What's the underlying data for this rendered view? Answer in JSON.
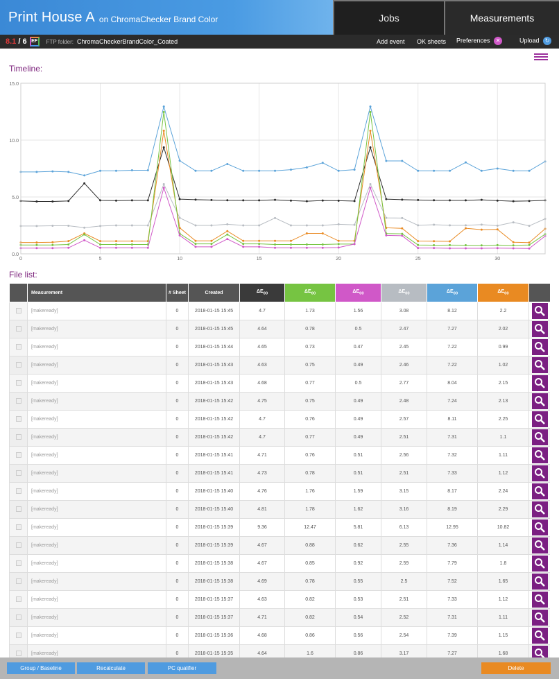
{
  "header": {
    "title": "Print House A",
    "subtitle": "on ChromaChecker Brand Color",
    "tabs": [
      {
        "label": "Jobs"
      },
      {
        "label": "Measurements"
      }
    ]
  },
  "toolbar": {
    "score_a": "8.1",
    "score_sep": " / ",
    "score_b": "6",
    "ef_badge": "EF",
    "ftp_label": "FTP folder:",
    "ftp_value": "ChromaCheckerBrandColor_Coated",
    "add_event": "Add event",
    "ok_sheets": "OK sheets",
    "preferences": "Preferences",
    "upload": "Upload"
  },
  "timeline_label": "Timeline:",
  "filelist_label": "File list:",
  "chart_data": {
    "type": "line",
    "title": "",
    "xlabel": "",
    "ylabel": "",
    "xlim": [
      0,
      33
    ],
    "ylim": [
      0,
      15
    ],
    "xticks": [
      0,
      5,
      10,
      15,
      20,
      25,
      30
    ],
    "yticks": [
      "0.0",
      "5.0",
      "10.0",
      "15.0"
    ],
    "x": [
      0,
      1,
      2,
      3,
      4,
      5,
      6,
      7,
      8,
      9,
      10,
      11,
      12,
      13,
      14,
      15,
      16,
      17,
      18,
      19,
      20,
      21,
      22,
      23,
      24,
      25,
      26,
      27,
      28,
      29,
      30,
      31,
      32,
      33
    ],
    "series": [
      {
        "color": "#5ba3d9",
        "values": [
          7.2,
          7.2,
          7.25,
          7.2,
          6.9,
          7.3,
          7.3,
          7.35,
          7.35,
          12.95,
          8.19,
          7.3,
          7.3,
          7.9,
          7.3,
          7.3,
          7.3,
          7.4,
          7.6,
          8.0,
          7.3,
          7.4,
          12.95,
          8.17,
          8.17,
          7.3,
          7.3,
          7.3,
          8.04,
          7.3,
          7.5,
          7.3,
          7.3,
          8.12
        ]
      },
      {
        "color": "#2b2b2b",
        "values": [
          4.65,
          4.6,
          4.6,
          4.65,
          6.2,
          4.7,
          4.68,
          4.7,
          4.7,
          9.36,
          4.81,
          4.76,
          4.73,
          4.71,
          4.7,
          4.7,
          4.75,
          4.68,
          4.63,
          4.69,
          4.67,
          4.64,
          9.36,
          4.81,
          4.76,
          4.73,
          4.71,
          4.7,
          4.7,
          4.75,
          4.68,
          4.63,
          4.65,
          4.7
        ]
      },
      {
        "color": "#b7bcc2",
        "values": [
          2.45,
          2.45,
          2.47,
          2.47,
          2.3,
          2.45,
          2.5,
          2.5,
          2.5,
          6.13,
          3.16,
          2.5,
          2.5,
          2.6,
          2.5,
          2.5,
          3.15,
          2.5,
          2.5,
          2.5,
          2.6,
          2.55,
          6.13,
          3.16,
          3.15,
          2.51,
          2.56,
          2.51,
          2.51,
          2.57,
          2.48,
          2.77,
          2.46,
          3.08
        ]
      },
      {
        "color": "#e98a22",
        "values": [
          1.0,
          1.0,
          1.02,
          1.12,
          1.8,
          1.12,
          1.12,
          1.12,
          1.12,
          10.82,
          2.29,
          1.14,
          1.14,
          2.0,
          1.14,
          1.14,
          1.14,
          1.14,
          1.8,
          1.8,
          1.14,
          1.14,
          10.82,
          2.29,
          2.24,
          1.12,
          1.11,
          1.1,
          2.25,
          2.13,
          2.15,
          1.02,
          0.99,
          2.2
        ]
      },
      {
        "color": "#76c442",
        "values": [
          0.78,
          0.78,
          0.78,
          0.82,
          1.7,
          0.82,
          0.82,
          0.82,
          0.82,
          12.47,
          1.78,
          0.88,
          0.88,
          1.7,
          0.88,
          0.88,
          0.82,
          0.82,
          0.82,
          0.82,
          0.86,
          0.86,
          12.47,
          1.78,
          1.76,
          0.78,
          0.76,
          0.77,
          0.76,
          0.75,
          0.77,
          0.75,
          0.78,
          1.73
        ]
      },
      {
        "color": "#d058c8",
        "values": [
          0.5,
          0.5,
          0.5,
          0.53,
          1.2,
          0.53,
          0.53,
          0.53,
          0.53,
          5.81,
          1.62,
          0.62,
          0.62,
          1.3,
          0.62,
          0.62,
          0.53,
          0.53,
          0.53,
          0.53,
          0.56,
          0.86,
          5.81,
          1.62,
          1.59,
          0.51,
          0.51,
          0.49,
          0.49,
          0.49,
          0.5,
          0.49,
          0.47,
          1.56
        ]
      }
    ]
  },
  "table": {
    "headers": {
      "measurement": "Measurement",
      "sheet": "# Sheet",
      "created": "Created",
      "de": "ΔE",
      "de_sub": "00"
    },
    "de_colors": [
      "#3a3a3a",
      "#76c442",
      "#d058c8",
      "#b7bcc2",
      "#5ba3d9",
      "#e98a22"
    ],
    "rows": [
      {
        "name": "[makeready]",
        "sheet": "0",
        "created": "2018-01-15 15:45",
        "v": [
          "4.7",
          "1.73",
          "1.56",
          "3.08",
          "8.12",
          "2.2"
        ]
      },
      {
        "name": "[makeready]",
        "sheet": "0",
        "created": "2018-01-15 15:45",
        "v": [
          "4.64",
          "0.78",
          "0.5",
          "2.47",
          "7.27",
          "2.02"
        ]
      },
      {
        "name": "[makeready]",
        "sheet": "0",
        "created": "2018-01-15 15:44",
        "v": [
          "4.65",
          "0.73",
          "0.47",
          "2.45",
          "7.22",
          "0.99"
        ]
      },
      {
        "name": "[makeready]",
        "sheet": "0",
        "created": "2018-01-15 15:43",
        "v": [
          "4.63",
          "0.75",
          "0.49",
          "2.46",
          "7.22",
          "1.02"
        ]
      },
      {
        "name": "[makeready]",
        "sheet": "0",
        "created": "2018-01-15 15:43",
        "v": [
          "4.68",
          "0.77",
          "0.5",
          "2.77",
          "8.04",
          "2.15"
        ]
      },
      {
        "name": "[makeready]",
        "sheet": "0",
        "created": "2018-01-15 15:42",
        "v": [
          "4.75",
          "0.75",
          "0.49",
          "2.48",
          "7.24",
          "2.13"
        ]
      },
      {
        "name": "[makeready]",
        "sheet": "0",
        "created": "2018-01-15 15:42",
        "v": [
          "4.7",
          "0.76",
          "0.49",
          "2.57",
          "8.11",
          "2.25"
        ]
      },
      {
        "name": "[makeready]",
        "sheet": "0",
        "created": "2018-01-15 15:42",
        "v": [
          "4.7",
          "0.77",
          "0.49",
          "2.51",
          "7.31",
          "1.1"
        ]
      },
      {
        "name": "[makeready]",
        "sheet": "0",
        "created": "2018-01-15 15:41",
        "v": [
          "4.71",
          "0.76",
          "0.51",
          "2.56",
          "7.32",
          "1.11"
        ]
      },
      {
        "name": "[makeready]",
        "sheet": "0",
        "created": "2018-01-15 15:41",
        "v": [
          "4.73",
          "0.78",
          "0.51",
          "2.51",
          "7.33",
          "1.12"
        ]
      },
      {
        "name": "[makeready]",
        "sheet": "0",
        "created": "2018-01-15 15:40",
        "v": [
          "4.76",
          "1.76",
          "1.59",
          "3.15",
          "8.17",
          "2.24"
        ]
      },
      {
        "name": "[makeready]",
        "sheet": "0",
        "created": "2018-01-15 15:40",
        "v": [
          "4.81",
          "1.78",
          "1.62",
          "3.16",
          "8.19",
          "2.29"
        ]
      },
      {
        "name": "[makeready]",
        "sheet": "0",
        "created": "2018-01-15 15:39",
        "v": [
          "9.36",
          "12.47",
          "5.81",
          "6.13",
          "12.95",
          "10.82"
        ]
      },
      {
        "name": "[makeready]",
        "sheet": "0",
        "created": "2018-01-15 15:39",
        "v": [
          "4.67",
          "0.88",
          "0.62",
          "2.55",
          "7.36",
          "1.14"
        ]
      },
      {
        "name": "[makeready]",
        "sheet": "0",
        "created": "2018-01-15 15:38",
        "v": [
          "4.67",
          "0.85",
          "0.92",
          "2.59",
          "7.79",
          "1.8"
        ]
      },
      {
        "name": "[makeready]",
        "sheet": "0",
        "created": "2018-01-15 15:38",
        "v": [
          "4.69",
          "0.78",
          "0.55",
          "2.5",
          "7.52",
          "1.65"
        ]
      },
      {
        "name": "[makeready]",
        "sheet": "0",
        "created": "2018-01-15 15:37",
        "v": [
          "4.63",
          "0.82",
          "0.53",
          "2.51",
          "7.33",
          "1.12"
        ]
      },
      {
        "name": "[makeready]",
        "sheet": "0",
        "created": "2018-01-15 15:37",
        "v": [
          "4.71",
          "0.82",
          "0.54",
          "2.52",
          "7.31",
          "1.11"
        ]
      },
      {
        "name": "[makeready]",
        "sheet": "0",
        "created": "2018-01-15 15:36",
        "v": [
          "4.68",
          "0.86",
          "0.56",
          "2.54",
          "7.39",
          "1.15"
        ]
      },
      {
        "name": "[makeready]",
        "sheet": "0",
        "created": "2018-01-15 15:35",
        "v": [
          "4.64",
          "1.6",
          "0.86",
          "3.17",
          "7.27",
          "1.68"
        ]
      }
    ]
  },
  "bottom": {
    "group_baseline": "Group / Baseline",
    "recalculate": "Recalculate",
    "pc_qualifier": "PC qualifier",
    "delete": "Delete"
  }
}
